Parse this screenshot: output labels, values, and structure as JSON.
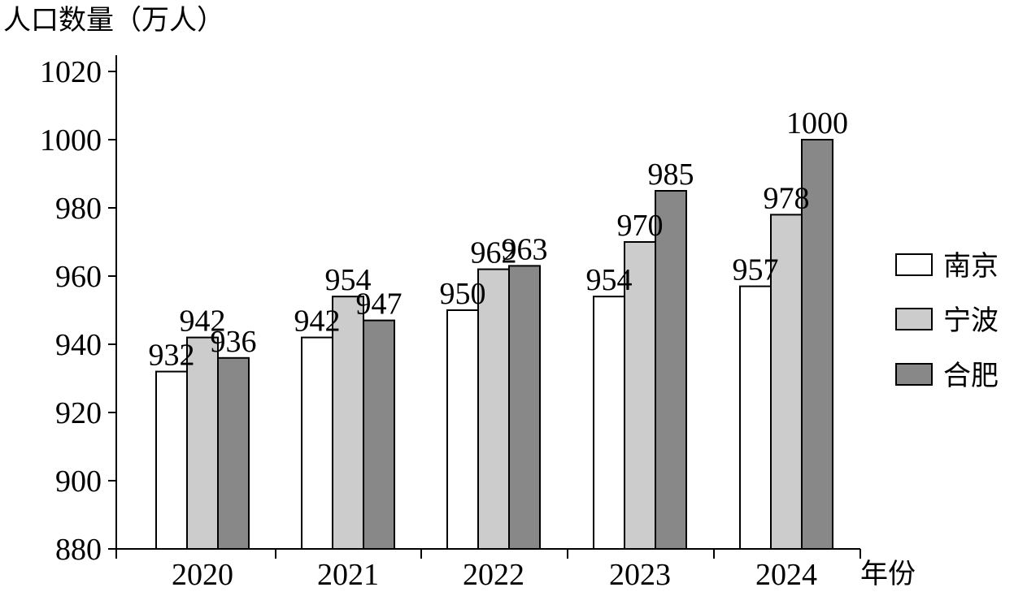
{
  "chart_data": {
    "type": "bar",
    "title": "",
    "ylabel": "人口数量（万人）",
    "xlabel": "年份",
    "categories": [
      "2020",
      "2021",
      "2022",
      "2023",
      "2024"
    ],
    "series": [
      {
        "name": "南京",
        "values": [
          932,
          942,
          950,
          954,
          957
        ],
        "labels": [
          "932",
          "942",
          "950",
          "954",
          "957"
        ],
        "color": "#ffffff"
      },
      {
        "name": "宁波",
        "values": [
          942,
          954,
          962,
          970,
          978
        ],
        "labels": [
          "942",
          "954",
          "962",
          "970",
          "978"
        ],
        "color": "#cccccc"
      },
      {
        "name": "合肥",
        "values": [
          936,
          947,
          963,
          985,
          1000
        ],
        "labels": [
          "936",
          "947",
          "963",
          "985",
          "1000"
        ],
        "color": "#888888"
      }
    ],
    "ylim": [
      880,
      1020
    ],
    "yticks": [
      "880",
      "900",
      "920",
      "940",
      "960",
      "980",
      "1000",
      "1020"
    ],
    "legend_position": "right",
    "grid": false
  }
}
